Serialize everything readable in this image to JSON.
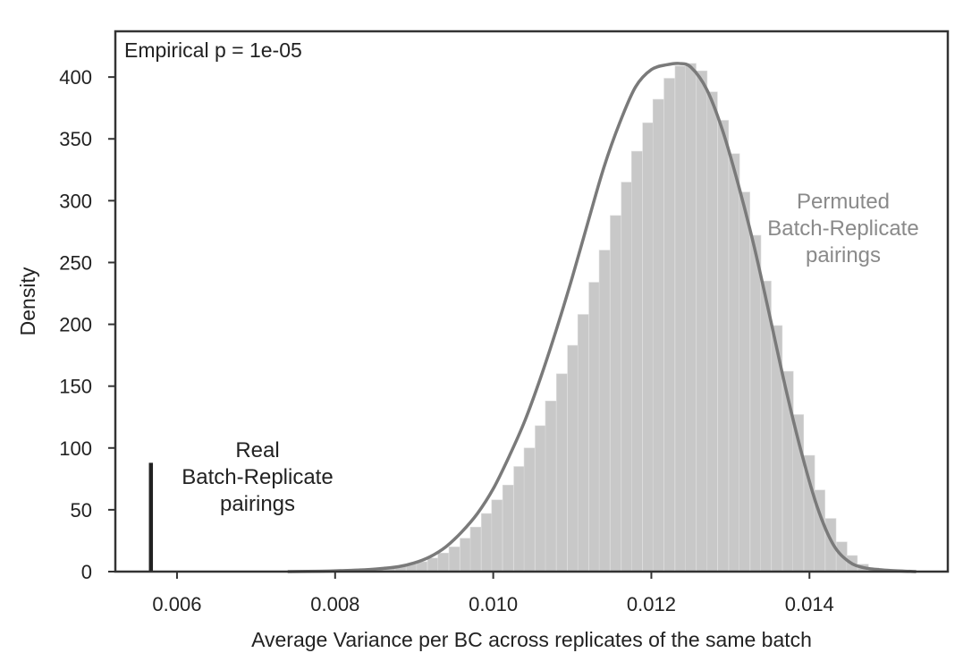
{
  "chart_data": {
    "type": "histogram",
    "xlabel": "Average Variance per BC across replicates of the same batch",
    "ylabel": "Density",
    "xlim": [
      0.00522,
      0.01575
    ],
    "ylim": [
      0,
      437
    ],
    "xticks": [
      0.006,
      0.008,
      0.01,
      0.012,
      0.014
    ],
    "xtick_labels": [
      "0.006",
      "0.008",
      "0.010",
      "0.012",
      "0.014"
    ],
    "yticks": [
      0,
      50,
      100,
      150,
      200,
      250,
      300,
      350,
      400
    ],
    "ytick_labels": [
      "0",
      "50",
      "100",
      "150",
      "200",
      "250",
      "300",
      "350",
      "400"
    ],
    "grid": false,
    "annotation": "Empirical p = 1e-05",
    "histogram": {
      "name": "Permuted Batch-Replicate pairings",
      "color": "#c8c8c8",
      "bin_width": 0.000136,
      "bin_starts": [
        0.0074,
        0.00754,
        0.00767,
        0.00781,
        0.00794,
        0.00808,
        0.00822,
        0.00835,
        0.00849,
        0.00862,
        0.00876,
        0.0089,
        0.00903,
        0.00917,
        0.0093,
        0.00944,
        0.00958,
        0.00971,
        0.00985,
        0.00998,
        0.01012,
        0.01026,
        0.01039,
        0.01053,
        0.01066,
        0.0108,
        0.01094,
        0.01107,
        0.01121,
        0.01134,
        0.01148,
        0.01162,
        0.01175,
        0.01189,
        0.01202,
        0.01216,
        0.0123,
        0.01243,
        0.01257,
        0.0127,
        0.01284,
        0.01298,
        0.01311,
        0.01325,
        0.01338,
        0.01352,
        0.01366,
        0.01379,
        0.01393,
        0.01406,
        0.0142,
        0.01434,
        0.01447,
        0.01461,
        0.01474,
        0.01488,
        0.01502,
        0.01515
      ],
      "densities": [
        0.5,
        0.5,
        0.5,
        1,
        1,
        1,
        2,
        2,
        3,
        4,
        5,
        6,
        8,
        11,
        15,
        20,
        27,
        36,
        47,
        58,
        70,
        85,
        100,
        118,
        138,
        160,
        183,
        208,
        234,
        260,
        288,
        315,
        340,
        363,
        382,
        399,
        409,
        411,
        405,
        388,
        365,
        338,
        307,
        272,
        235,
        199,
        162,
        127,
        94,
        66,
        43,
        24,
        13,
        6,
        3,
        1,
        0.5,
        0.5
      ]
    },
    "kde": {
      "name": "Permuted Batch-Replicate pairings",
      "color": "#7a7a7a",
      "x": [
        0.0074,
        0.0078,
        0.0082,
        0.0085,
        0.0088,
        0.009,
        0.0092,
        0.0094,
        0.0096,
        0.0098,
        0.01,
        0.0102,
        0.0104,
        0.0106,
        0.0108,
        0.011,
        0.0112,
        0.0114,
        0.0116,
        0.0118,
        0.012,
        0.0122,
        0.01235,
        0.0125,
        0.0127,
        0.0129,
        0.0131,
        0.0133,
        0.0135,
        0.0137,
        0.0139,
        0.0141,
        0.0143,
        0.0145,
        0.0147,
        0.015,
        0.01535
      ],
      "y": [
        0,
        0.3,
        1,
        2,
        4,
        7,
        12,
        20,
        32,
        47,
        67,
        93,
        122,
        157,
        196,
        238,
        283,
        327,
        363,
        392,
        406,
        410,
        411,
        408,
        390,
        357,
        313,
        263,
        206,
        148,
        96,
        52,
        22,
        8,
        3,
        1,
        0
      ]
    },
    "real_line": {
      "name": "Real Batch-Replicate pairings",
      "color": "#222222",
      "x": 0.00567,
      "y_top": 88
    },
    "labels": {
      "permuted": [
        "Permuted",
        "Batch-Replicate",
        "pairings"
      ],
      "real": [
        "Real",
        "Batch-Replicate",
        "pairings"
      ]
    }
  }
}
